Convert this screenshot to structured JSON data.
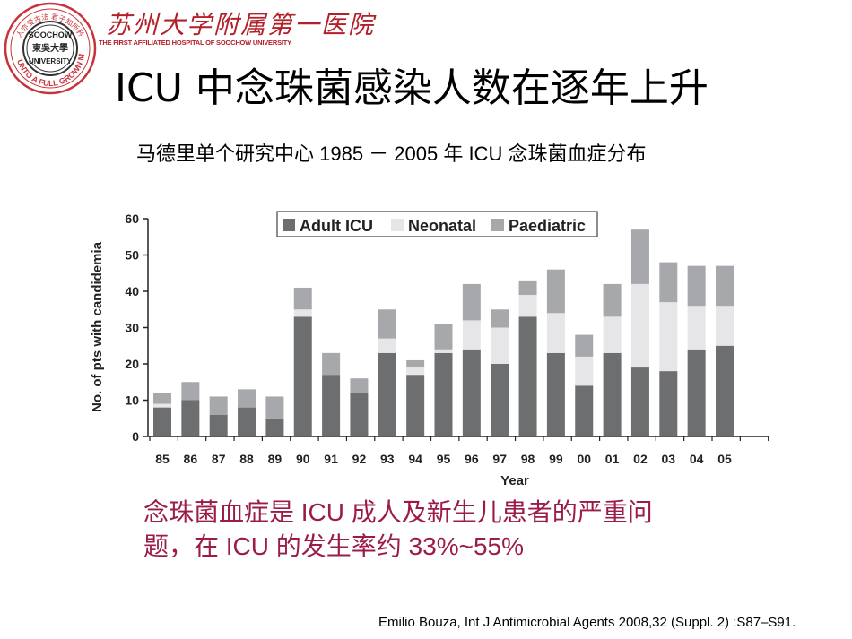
{
  "header": {
    "logo": {
      "ring_text_top": "人亦爱古法 君子知所矜",
      "ring_text_bottom": "UNTO A FULL GROWN MAN",
      "center_top": "SOOCHOW",
      "center_mid": "東吳大學",
      "center_bottom": "UNIVERSITY"
    },
    "hospital_cn": "苏州大学附属第一医院",
    "hospital_en": "THE FIRST AFFILIATED HOSPITAL OF SOOCHOW UNIVERSITY"
  },
  "slide": {
    "title": "ICU 中念珠菌感染人数在逐年上升",
    "subtitle": "马德里单个研究中心 1985 － 2005 年 ICU 念珠菌血症分布",
    "note": "念珠菌血症是 ICU 成人及新生儿患者的严重问题，在 ICU 的发生率约 33%~55%",
    "citation": "Emilio Bouza, Int J Antimicrobial Agents 2008,32 (Suppl. 2) :S87–S91."
  },
  "colors": {
    "adult": "#6d6e70",
    "neonatal": "#e6e6e8",
    "paediatric": "#a7a8ab",
    "accent_red": "#b3202a",
    "note_text": "#9b1b4a"
  },
  "chart_data": {
    "type": "bar",
    "stacked": true,
    "title": "",
    "xlabel": "Year",
    "ylabel": "No. of pts with candidemia",
    "ylim": [
      0,
      60
    ],
    "yticks": [
      0,
      10,
      20,
      30,
      40,
      50,
      60
    ],
    "grid": false,
    "legend_position": "top-center",
    "categories": [
      "85",
      "86",
      "87",
      "88",
      "89",
      "90",
      "91",
      "92",
      "93",
      "94",
      "95",
      "96",
      "97",
      "98",
      "99",
      "00",
      "01",
      "02",
      "03",
      "04",
      "05"
    ],
    "series": [
      {
        "name": "Adult ICU",
        "color": "#6d6e70",
        "values": [
          8,
          10,
          6,
          8,
          5,
          33,
          17,
          12,
          23,
          17,
          23,
          24,
          20,
          33,
          23,
          14,
          23,
          19,
          18,
          24,
          25
        ]
      },
      {
        "name": "Neonatal",
        "color": "#e6e6e8",
        "values": [
          1,
          0,
          0,
          0,
          0,
          2,
          0,
          0,
          4,
          2,
          1,
          8,
          10,
          6,
          11,
          8,
          10,
          23,
          19,
          12,
          11
        ]
      },
      {
        "name": "Paediatric",
        "color": "#a7a8ab",
        "values": [
          3,
          5,
          5,
          5,
          6,
          6,
          6,
          4,
          8,
          2,
          7,
          10,
          5,
          4,
          12,
          6,
          9,
          15,
          11,
          11,
          11
        ]
      }
    ],
    "totals": [
      12,
      15,
      11,
      13,
      11,
      41,
      23,
      16,
      35,
      21,
      31,
      42,
      35,
      43,
      46,
      28,
      42,
      57,
      48,
      47,
      47
    ]
  }
}
